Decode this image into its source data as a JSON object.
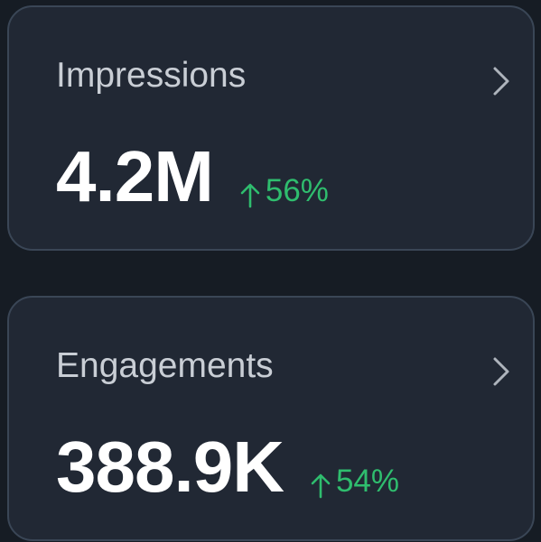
{
  "cards": [
    {
      "label": "Impressions",
      "value": "4.2M",
      "change": "56%"
    },
    {
      "label": "Engagements",
      "value": "388.9K",
      "change": "54%"
    }
  ]
}
